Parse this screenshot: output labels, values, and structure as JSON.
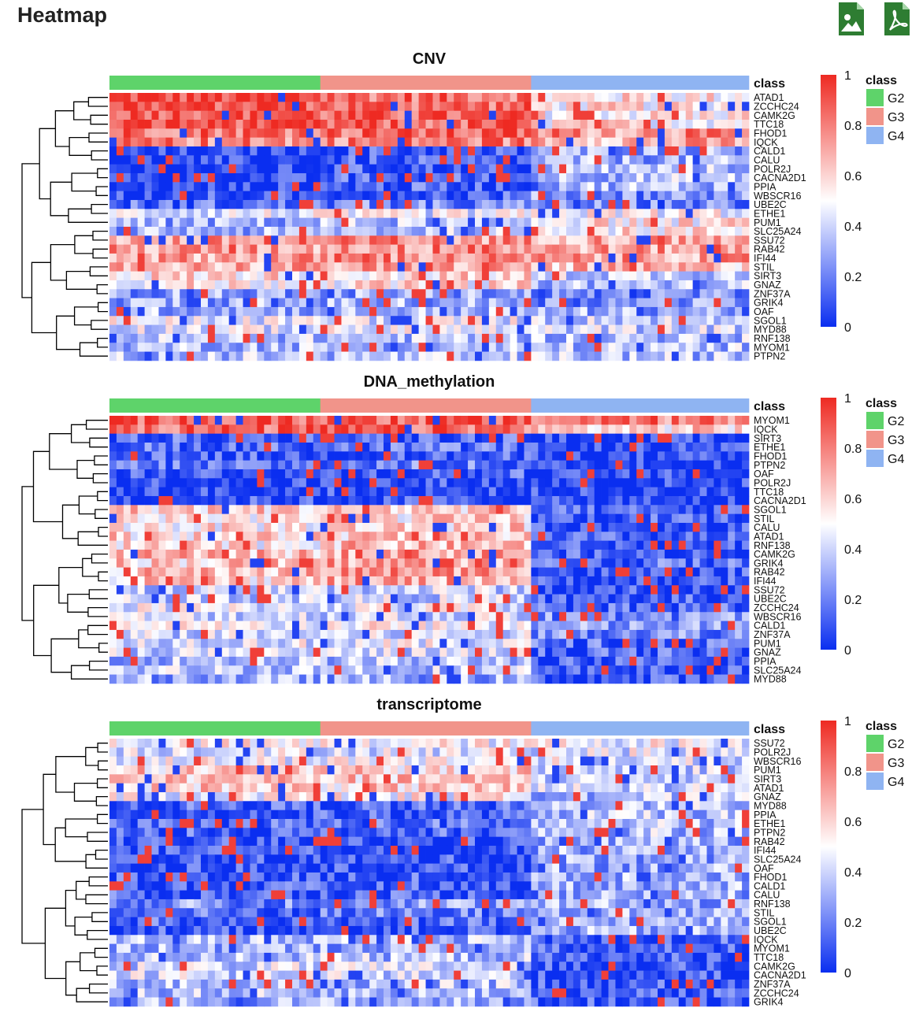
{
  "page": {
    "title": "Heatmap"
  },
  "toolbar": {
    "download_png_icon": "image-file-icon",
    "download_pdf_icon": "pdf-file-icon",
    "icon_color": "#2e7d32"
  },
  "colors": {
    "low": "#0a2ef0",
    "mid": "#ffffff",
    "high": "#ee2a22",
    "classes": {
      "G2": "#5ed36a",
      "G3": "#f1948a",
      "G4": "#8fb4f2"
    },
    "dendrogram": "#000000"
  },
  "chart_data": [
    {
      "type": "heatmap",
      "title": "CNV",
      "annotation_label": "class",
      "column_groups": [
        {
          "name": "G2",
          "count": 30
        },
        {
          "name": "G3",
          "count": 30
        },
        {
          "name": "G4",
          "count": 31
        }
      ],
      "rows": [
        "ATAD1",
        "ZCCHC24",
        "CAMK2G",
        "TTC18",
        "FHOD1",
        "IQCK",
        "CALD1",
        "CALU",
        "POLR2J",
        "CACNA2D1",
        "PPIA",
        "WBSCR16",
        "UBE2C",
        "ETHE1",
        "PUM1",
        "SLC25A24",
        "SSU72",
        "RAB42",
        "IFI44",
        "STIL",
        "SIRT3",
        "GNAZ",
        "ZNF37A",
        "GRIK4",
        "OAF",
        "SGOL1",
        "MYD88",
        "RNF138",
        "MYOM1",
        "PTPN2"
      ],
      "row_means": {
        "G2": [
          0.92,
          0.92,
          0.92,
          0.92,
          0.85,
          0.78,
          0.04,
          0.04,
          0.04,
          0.05,
          0.05,
          0.08,
          0.15,
          0.45,
          0.3,
          0.3,
          0.72,
          0.72,
          0.72,
          0.7,
          0.58,
          0.55,
          0.28,
          0.3,
          0.32,
          0.45,
          0.45,
          0.35,
          0.35,
          0.35
        ],
        "G3": [
          0.85,
          0.85,
          0.85,
          0.85,
          0.85,
          0.8,
          0.1,
          0.1,
          0.1,
          0.12,
          0.12,
          0.12,
          0.2,
          0.45,
          0.35,
          0.35,
          0.75,
          0.75,
          0.75,
          0.7,
          0.58,
          0.55,
          0.28,
          0.3,
          0.32,
          0.45,
          0.45,
          0.35,
          0.35,
          0.35
        ],
        "G4": [
          0.55,
          0.55,
          0.55,
          0.55,
          0.75,
          0.7,
          0.3,
          0.3,
          0.35,
          0.35,
          0.35,
          0.25,
          0.2,
          0.5,
          0.55,
          0.55,
          0.72,
          0.72,
          0.72,
          0.65,
          0.4,
          0.35,
          0.2,
          0.25,
          0.3,
          0.4,
          0.4,
          0.35,
          0.35,
          0.35
        ]
      },
      "color_range": [
        0,
        1
      ],
      "colorbar_ticks": [
        0,
        0.2,
        0.4,
        0.6,
        0.8,
        1
      ],
      "legend": {
        "title": "class",
        "entries": [
          "G2",
          "G3",
          "G4"
        ]
      }
    },
    {
      "type": "heatmap",
      "title": "DNA_methylation",
      "annotation_label": "class",
      "column_groups": [
        {
          "name": "G2",
          "count": 30
        },
        {
          "name": "G3",
          "count": 30
        },
        {
          "name": "G4",
          "count": 31
        }
      ],
      "rows": [
        "MYOM1",
        "IQCK",
        "SIRT3",
        "ETHE1",
        "FHOD1",
        "PTPN2",
        "OAF",
        "POLR2J",
        "TTC18",
        "CACNA2D1",
        "SGOL1",
        "STIL",
        "CALU",
        "ATAD1",
        "RNF138",
        "CAMK2G",
        "GRIK4",
        "RAB42",
        "IFI44",
        "SSU72",
        "UBE2C",
        "ZCCHC24",
        "WBSCR16",
        "CALD1",
        "ZNF37A",
        "PUM1",
        "GNAZ",
        "PPIA",
        "SLC25A24",
        "MYD88"
      ],
      "row_means": {
        "G2": [
          0.88,
          0.85,
          0.12,
          0.15,
          0.1,
          0.18,
          0.12,
          0.08,
          0.06,
          0.08,
          0.62,
          0.55,
          0.55,
          0.6,
          0.55,
          0.65,
          0.62,
          0.65,
          0.6,
          0.4,
          0.4,
          0.45,
          0.42,
          0.48,
          0.4,
          0.45,
          0.4,
          0.35,
          0.38,
          0.3
        ],
        "G3": [
          0.88,
          0.85,
          0.12,
          0.15,
          0.1,
          0.18,
          0.12,
          0.08,
          0.06,
          0.08,
          0.62,
          0.58,
          0.6,
          0.62,
          0.65,
          0.72,
          0.72,
          0.75,
          0.7,
          0.4,
          0.4,
          0.45,
          0.42,
          0.5,
          0.4,
          0.45,
          0.4,
          0.35,
          0.38,
          0.3
        ],
        "G4": [
          0.8,
          0.6,
          0.05,
          0.05,
          0.05,
          0.05,
          0.05,
          0.05,
          0.05,
          0.05,
          0.1,
          0.1,
          0.1,
          0.1,
          0.08,
          0.1,
          0.15,
          0.08,
          0.08,
          0.08,
          0.1,
          0.15,
          0.25,
          0.25,
          0.25,
          0.15,
          0.12,
          0.1,
          0.08,
          0.1
        ]
      },
      "color_range": [
        0,
        1
      ],
      "colorbar_ticks": [
        0,
        0.2,
        0.4,
        0.6,
        0.8,
        1
      ],
      "legend": {
        "title": "class",
        "entries": [
          "G2",
          "G3",
          "G4"
        ]
      }
    },
    {
      "type": "heatmap",
      "title": "transcriptome",
      "annotation_label": "class",
      "column_groups": [
        {
          "name": "G2",
          "count": 30
        },
        {
          "name": "G3",
          "count": 30
        },
        {
          "name": "G4",
          "count": 31
        }
      ],
      "rows": [
        "SSU72",
        "POLR2J",
        "WBSCR16",
        "PUM1",
        "SIRT3",
        "ATAD1",
        "GNAZ",
        "MYD88",
        "PPIA",
        "ETHE1",
        "PTPN2",
        "RAB42",
        "IFI44",
        "SLC25A24",
        "OAF",
        "FHOD1",
        "CALD1",
        "CALU",
        "RNF138",
        "STIL",
        "SGOL1",
        "UBE2C",
        "IQCK",
        "MYOM1",
        "TTC18",
        "CAMK2G",
        "CACNA2D1",
        "ZNF37A",
        "ZCCHC24",
        "GRIK4"
      ],
      "row_means": {
        "G2": [
          0.5,
          0.45,
          0.5,
          0.62,
          0.65,
          0.62,
          0.5,
          0.12,
          0.1,
          0.15,
          0.12,
          0.08,
          0.08,
          0.08,
          0.08,
          0.1,
          0.1,
          0.12,
          0.25,
          0.15,
          0.12,
          0.1,
          0.35,
          0.3,
          0.35,
          0.4,
          0.4,
          0.35,
          0.35,
          0.3
        ],
        "G3": [
          0.5,
          0.45,
          0.5,
          0.6,
          0.62,
          0.6,
          0.5,
          0.12,
          0.1,
          0.15,
          0.12,
          0.08,
          0.08,
          0.08,
          0.08,
          0.1,
          0.1,
          0.12,
          0.28,
          0.18,
          0.12,
          0.1,
          0.35,
          0.3,
          0.35,
          0.4,
          0.4,
          0.35,
          0.35,
          0.3
        ],
        "G4": [
          0.5,
          0.45,
          0.45,
          0.4,
          0.4,
          0.4,
          0.35,
          0.35,
          0.35,
          0.35,
          0.35,
          0.3,
          0.3,
          0.3,
          0.3,
          0.3,
          0.3,
          0.3,
          0.3,
          0.3,
          0.3,
          0.3,
          0.12,
          0.1,
          0.1,
          0.08,
          0.08,
          0.1,
          0.1,
          0.1
        ]
      },
      "color_range": [
        0,
        1
      ],
      "colorbar_ticks": [
        0,
        0.2,
        0.4,
        0.6,
        0.8,
        1
      ],
      "legend": {
        "title": "class",
        "entries": [
          "G2",
          "G3",
          "G4"
        ]
      }
    }
  ]
}
